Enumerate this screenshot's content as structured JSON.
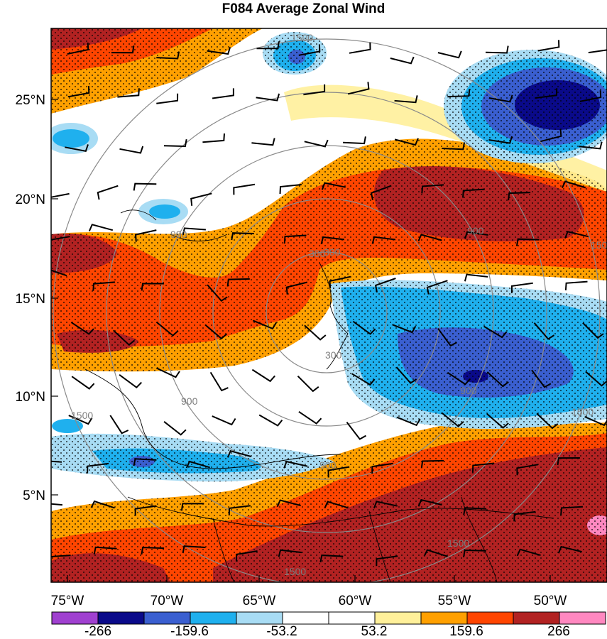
{
  "title": "F084 Average Zonal Wind",
  "axes": {
    "lat_labels": [
      "25°N",
      "20°N",
      "15°N",
      "10°N",
      "5°N"
    ],
    "lon_labels": [
      "75°W",
      "70°W",
      "65°W",
      "60°W",
      "55°W",
      "50°W"
    ]
  },
  "colorbar": {
    "labels": [
      "-266",
      "-159.6",
      "-53.2",
      "53.2",
      "159.6",
      "266"
    ],
    "colors": [
      "#a040d0",
      "#0a0a8a",
      "#3a5fd0",
      "#1fb0ee",
      "#a8dcf4",
      "#ffffff",
      "#ffffff",
      "#fff09a",
      "#ffa000",
      "#ff4500",
      "#b22222",
      "#ff88c0"
    ]
  },
  "range_ring_labels": [
    "300",
    "900",
    "1500",
    "300",
    "900",
    "1500",
    "900",
    "900",
    "900",
    "1500",
    "1500",
    "1500",
    "1500",
    "300"
  ],
  "colors": {
    "ring": "#8a8a8a",
    "contour": "#000000",
    "barb": "#000000"
  }
}
